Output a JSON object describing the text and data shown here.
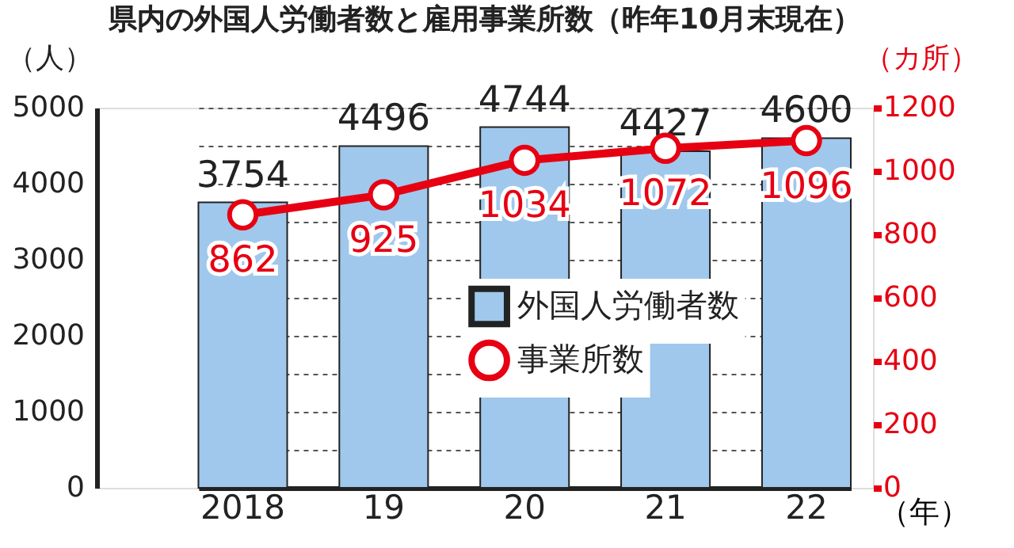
{
  "chart_data": {
    "type": "bar",
    "title": "県内の外国人労働者数と雇用事業所数（昨年10月末現在）",
    "xlabel": "（年）",
    "ylabel": "（人）",
    "y2label": "（カ所）",
    "categories": [
      "2018",
      "19",
      "20",
      "21",
      "22"
    ],
    "series": [
      {
        "name": "外国人労働者数",
        "type": "bar",
        "color": "#a0c8ec",
        "values": [
          3754,
          4496,
          4744,
          4427,
          4600
        ]
      },
      {
        "name": "事業所数",
        "type": "line",
        "axis": "y2",
        "color": "#e60012",
        "values": [
          862,
          925,
          1034,
          1072,
          1096
        ]
      }
    ],
    "ylim": [
      0,
      5000
    ],
    "yticks": [
      0,
      {
        "value": 500,
        "label": null
      },
      1000,
      {
        "value": 1500,
        "label": null
      },
      2000,
      {
        "value": 2500,
        "label": null
      },
      3000,
      {
        "value": 3500,
        "label": null
      },
      4000,
      {
        "value": 4500,
        "label": null
      },
      5000
    ],
    "y2lim": [
      0,
      1200
    ],
    "y2ticks": [
      0,
      200,
      400,
      600,
      800,
      1000,
      1200
    ],
    "grid": "y",
    "legend": "bottom right",
    "data_labels": true,
    "marker": "circle",
    "line_style": "solid"
  }
}
